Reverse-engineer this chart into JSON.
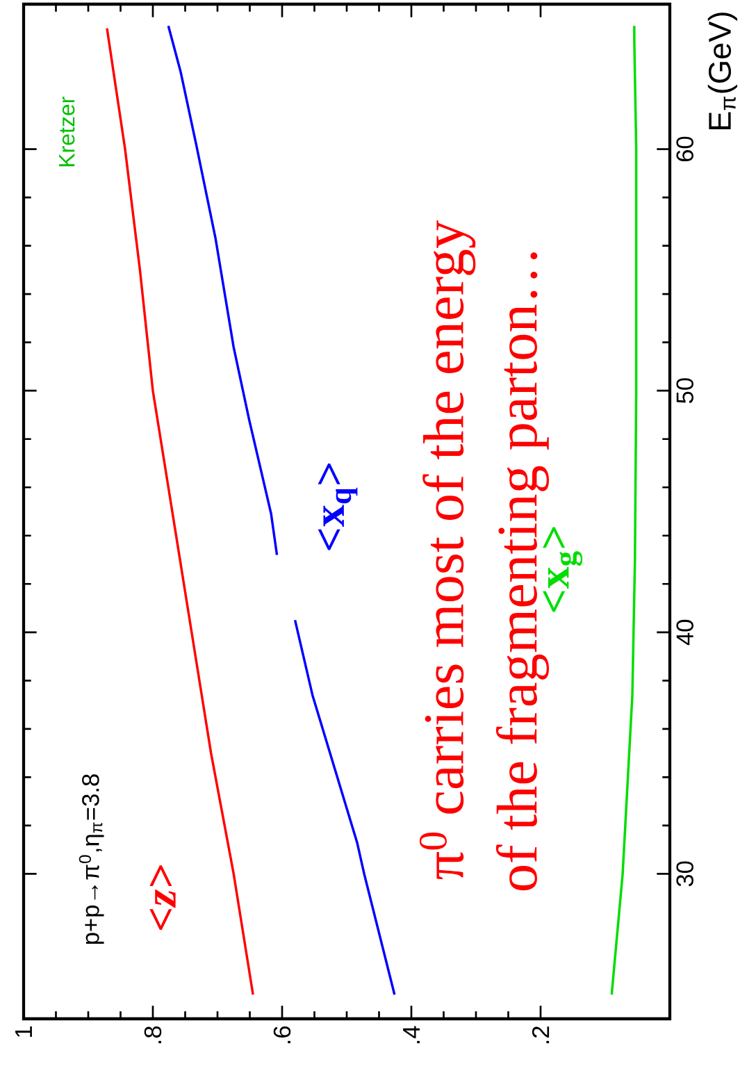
{
  "chart_data": {
    "type": "line",
    "ylabel": "E$_{π}$(GeV)",
    "xlim": [
      1,
      0
    ],
    "ylim": [
      24,
      66
    ],
    "yticks": [
      {
        "value": 30,
        "label": "30"
      },
      {
        "value": 40,
        "label": "40"
      },
      {
        "value": 50,
        "label": "50"
      },
      {
        "value": 60,
        "label": "60"
      }
    ],
    "xticks": [
      {
        "value": 0.2,
        "label": ".2"
      },
      {
        "value": 0.4,
        "label": ".4"
      },
      {
        "value": 0.6,
        "label": ".6"
      },
      {
        "value": 0.8,
        "label": ".8"
      },
      {
        "value": 1,
        "label": "1"
      }
    ],
    "grid": false,
    "legend": false,
    "marker": "none",
    "line_style": "solid",
    "annotations": [
      "p+p→π$^{0}$,η$_{π}$=3.8",
      "π$^{0}$ carries most of the energy",
      "of the fragmenting parton…",
      "Kretzer"
    ],
    "series": [
      {
        "name": "<z>",
        "color": "#ff0000",
        "values": [
          25,
          30,
          35,
          40,
          45,
          50,
          55,
          60,
          65
        ],
        "x": [
          0.645,
          0.675,
          0.71,
          0.74,
          0.77,
          0.8,
          0.82,
          0.843,
          0.871
        ]
      },
      {
        "name": "<x$_{q}$>",
        "color": "#0000ff",
        "values": [
          25,
          30,
          31.3,
          37.4,
          40.5,
          null,
          43.2,
          44.9,
          48.8,
          51.8,
          56.3,
          60.2,
          63.2,
          65.1
        ],
        "x": [
          0.426,
          0.473,
          0.484,
          0.553,
          0.58,
          0.595,
          0.608,
          0.617,
          0.651,
          0.675,
          0.703,
          0.733,
          0.757,
          0.776
        ]
      },
      {
        "name": "<x$_{g}$>",
        "color": "#00dd00",
        "values": [
          25,
          30,
          37.4,
          43,
          50,
          60,
          64.5,
          65.1
        ],
        "x": [
          0.09,
          0.073,
          0.058,
          0.054,
          0.052,
          0.052,
          0.055,
          0.055
        ]
      }
    ]
  }
}
